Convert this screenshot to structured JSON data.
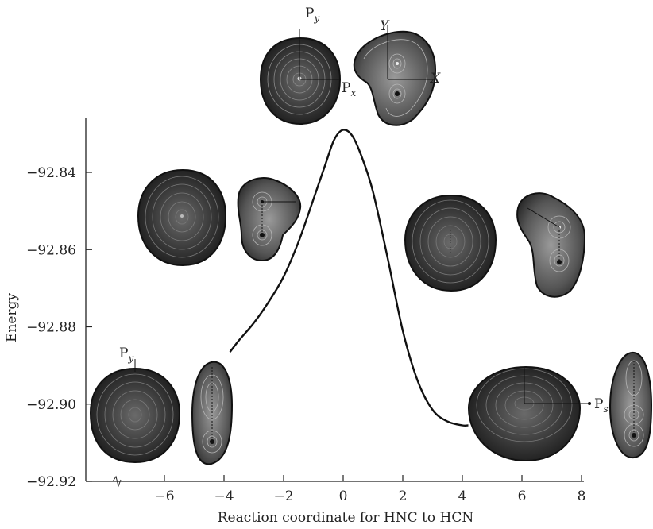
{
  "chart_data": {
    "type": "line",
    "title": "",
    "xlabel": "Reaction coordinate for HNC to HCN",
    "ylabel": "Energy",
    "xlim": [
      -8.2,
      8
    ],
    "ylim": [
      -92.92,
      -92.824
    ],
    "x_ticks": [
      -6,
      -4,
      -2,
      0,
      2,
      4,
      6,
      8
    ],
    "x_tick_labels": [
      "−6",
      "−4",
      "−2",
      "0",
      "2",
      "4",
      "6",
      "8"
    ],
    "y_ticks": [
      -92.92,
      -92.9,
      -92.88,
      -92.86,
      -92.84
    ],
    "y_tick_labels": [
      "−92.92",
      "−92.90",
      "−92.88",
      "−92.86",
      "−92.84"
    ],
    "grid": false,
    "series": [
      {
        "color": "#111111",
        "x": [
          -3.8,
          -3.5,
          -3.0,
          -2.5,
          -2.0,
          -1.5,
          -1.0,
          -0.6,
          -0.3,
          0.0,
          0.3,
          0.6,
          1.0,
          1.5,
          2.0,
          2.5,
          3.0,
          3.5,
          4.0,
          4.2
        ],
        "y": [
          -92.8865,
          -92.8835,
          -92.879,
          -92.8735,
          -92.867,
          -92.858,
          -92.847,
          -92.838,
          -92.8315,
          -92.829,
          -92.8305,
          -92.8355,
          -92.845,
          -92.8625,
          -92.881,
          -92.894,
          -92.9015,
          -92.9045,
          -92.9055,
          -92.9055
        ]
      }
    ]
  },
  "insets": {
    "py_label": "P",
    "py_sub": "y",
    "px_label": "P",
    "px_sub": "x",
    "ps_label": "P",
    "ps_sub": "s",
    "x_axis_label": "X",
    "y_axis_label": "Y"
  }
}
